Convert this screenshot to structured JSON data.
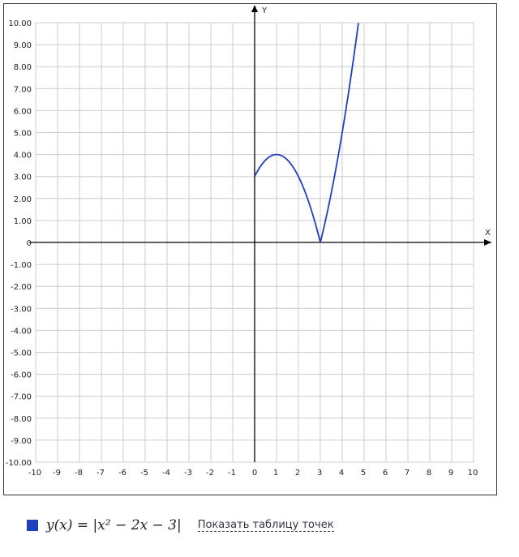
{
  "chart_data": {
    "type": "line",
    "title": "",
    "xlabel": "X",
    "ylabel": "Y",
    "xlim": [
      -10,
      10
    ],
    "ylim": [
      -10,
      10
    ],
    "grid": true,
    "x_ticks": [
      -10,
      -9,
      -8,
      -7,
      -6,
      -5,
      -4,
      -3,
      -2,
      -1,
      0,
      1,
      2,
      3,
      4,
      5,
      6,
      7,
      8,
      9,
      10
    ],
    "y_ticks": [
      "10.00",
      "9.00",
      "8.00",
      "7.00",
      "6.00",
      "5.00",
      "4.00",
      "3.00",
      "2.00",
      "1.00",
      "0",
      "-1.00",
      "-2.00",
      "-3.00",
      "-4.00",
      "-5.00",
      "-6.00",
      "-7.00",
      "-8.00",
      "-9.00",
      "-10.00"
    ],
    "series": [
      {
        "function": "|x^2 - 2x - 3|",
        "domain": [
          0,
          4.74
        ],
        "color": "#1f3fbf",
        "points": [
          [
            0,
            3
          ],
          [
            0.5,
            3.75
          ],
          [
            1,
            4
          ],
          [
            1.5,
            3.75
          ],
          [
            2,
            3
          ],
          [
            2.5,
            1.75
          ],
          [
            3,
            0
          ],
          [
            3.5,
            2.25
          ],
          [
            4,
            5
          ],
          [
            4.5,
            8.25
          ],
          [
            4.74,
            10
          ]
        ]
      }
    ]
  },
  "legend": {
    "color": "#1f3fbf",
    "formula": "y(x) = |x² − 2x − 3|",
    "table_link": "Показать таблицу точек"
  }
}
